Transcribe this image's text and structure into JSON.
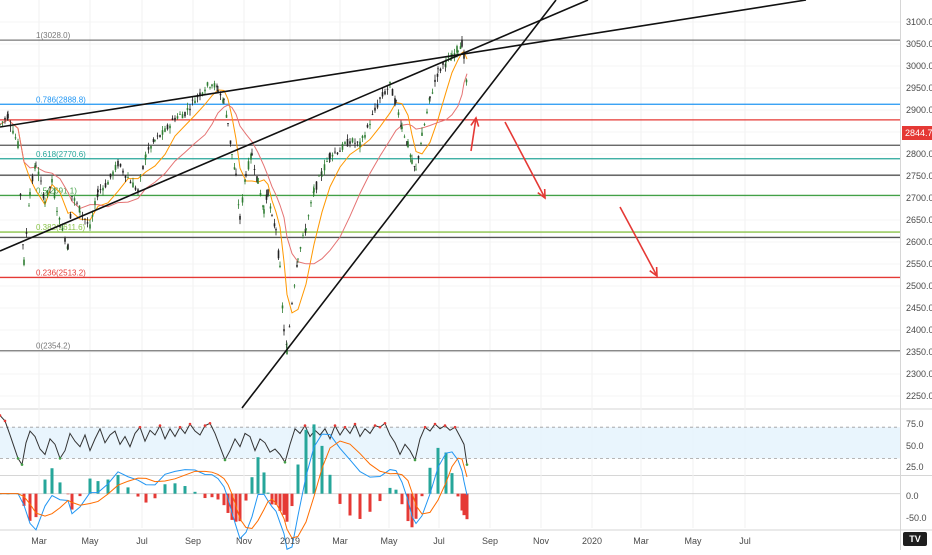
{
  "chart_data": {
    "type": "candlestick",
    "x_tick_labels": [
      "Mar",
      "May",
      "Jul",
      "Sep",
      "Nov",
      "2019",
      "Mar",
      "May",
      "Jul",
      "Sep",
      "Nov",
      "2020",
      "Mar",
      "May",
      "Jul"
    ],
    "y_tick_labels": [
      "3100.0",
      "3050.0",
      "3000.0",
      "2950.0",
      "2900.0",
      "2850.0",
      "2800.0",
      "2750.0",
      "2700.0",
      "2650.0",
      "2600.0",
      "2550.0",
      "2500.0",
      "2450.0",
      "2400.0",
      "2350.0",
      "2300.0",
      "2250.0"
    ],
    "ylim": [
      2230,
      3115
    ],
    "last_price": "2844.7",
    "last_price_color": "#e53935",
    "price_path": [
      [
        0,
        2845
      ],
      [
        8,
        2865
      ],
      [
        18,
        2800
      ],
      [
        24,
        2545
      ],
      [
        30,
        2700
      ],
      [
        36,
        2760
      ],
      [
        45,
        2680
      ],
      [
        52,
        2720
      ],
      [
        60,
        2630
      ],
      [
        68,
        2580
      ],
      [
        72,
        2690
      ],
      [
        80,
        2660
      ],
      [
        90,
        2620
      ],
      [
        98,
        2700
      ],
      [
        108,
        2720
      ],
      [
        118,
        2760
      ],
      [
        128,
        2730
      ],
      [
        138,
        2700
      ],
      [
        146,
        2780
      ],
      [
        155,
        2810
      ],
      [
        165,
        2830
      ],
      [
        175,
        2860
      ],
      [
        185,
        2870
      ],
      [
        195,
        2900
      ],
      [
        205,
        2925
      ],
      [
        212,
        2935
      ],
      [
        218,
        2920
      ],
      [
        224,
        2895
      ],
      [
        228,
        2850
      ],
      [
        232,
        2780
      ],
      [
        236,
        2730
      ],
      [
        240,
        2640
      ],
      [
        246,
        2740
      ],
      [
        252,
        2780
      ],
      [
        258,
        2720
      ],
      [
        264,
        2660
      ],
      [
        268,
        2700
      ],
      [
        272,
        2640
      ],
      [
        276,
        2620
      ],
      [
        280,
        2530
      ],
      [
        284,
        2400
      ],
      [
        287,
        2355
      ],
      [
        292,
        2460
      ],
      [
        298,
        2560
      ],
      [
        306,
        2620
      ],
      [
        314,
        2700
      ],
      [
        322,
        2740
      ],
      [
        330,
        2780
      ],
      [
        340,
        2790
      ],
      [
        350,
        2810
      ],
      [
        360,
        2800
      ],
      [
        370,
        2850
      ],
      [
        380,
        2900
      ],
      [
        390,
        2930
      ],
      [
        396,
        2890
      ],
      [
        402,
        2840
      ],
      [
        408,
        2800
      ],
      [
        412,
        2760
      ],
      [
        416,
        2745
      ],
      [
        422,
        2820
      ],
      [
        430,
        2900
      ],
      [
        438,
        2960
      ],
      [
        446,
        2980
      ],
      [
        452,
        2990
      ],
      [
        458,
        3010
      ],
      [
        462,
        3022
      ],
      [
        464,
        2990
      ],
      [
        467,
        2925
      ]
    ],
    "fib_levels": [
      {
        "label": "1(3028.0)",
        "value": 3028.0,
        "color": "#787878"
      },
      {
        "label": "0.786(2888.8)",
        "value": 2888.8,
        "color": "#2196f3"
      },
      {
        "label": "",
        "value": 2855,
        "color": "#e53935"
      },
      {
        "label": "",
        "value": 2800,
        "color": "#555555"
      },
      {
        "label": "0.618(2770.6)",
        "value": 2770.6,
        "color": "#26a69a"
      },
      {
        "label": "",
        "value": 2735,
        "color": "#555555"
      },
      {
        "label": "0.5(2691.1)",
        "value": 2691.1,
        "color": "#43a047"
      },
      {
        "label": "0.382(2611.6)",
        "value": 2611.6,
        "color": "#8bc34a"
      },
      {
        "label": "",
        "value": 2600,
        "color": "#555555"
      },
      {
        "label": "0.236(2513.2)",
        "value": 2513.2,
        "color": "#e53935"
      },
      {
        "label": "0(2354.2)",
        "value": 2354.2,
        "color": "#787878"
      }
    ],
    "rsi": {
      "tick_labels": [
        "75.0",
        "50.0",
        "25.0"
      ],
      "ylim": [
        10,
        92
      ],
      "upper_band": 70,
      "lower_band": 30,
      "series": [
        [
          0,
          85
        ],
        [
          5,
          78
        ],
        [
          10,
          60
        ],
        [
          14,
          45
        ],
        [
          18,
          30
        ],
        [
          22,
          22
        ],
        [
          26,
          50
        ],
        [
          30,
          65
        ],
        [
          35,
          58
        ],
        [
          40,
          42
        ],
        [
          45,
          35
        ],
        [
          50,
          55
        ],
        [
          55,
          48
        ],
        [
          60,
          30
        ],
        [
          65,
          40
        ],
        [
          70,
          62
        ],
        [
          75,
          52
        ],
        [
          80,
          45
        ],
        [
          85,
          60
        ],
        [
          90,
          40
        ],
        [
          95,
          55
        ],
        [
          100,
          68
        ],
        [
          105,
          50
        ],
        [
          110,
          60
        ],
        [
          115,
          65
        ],
        [
          120,
          48
        ],
        [
          125,
          58
        ],
        [
          130,
          45
        ],
        [
          135,
          62
        ],
        [
          140,
          70
        ],
        [
          145,
          52
        ],
        [
          150,
          66
        ],
        [
          155,
          60
        ],
        [
          160,
          72
        ],
        [
          165,
          55
        ],
        [
          170,
          68
        ],
        [
          175,
          58
        ],
        [
          180,
          70
        ],
        [
          185,
          62
        ],
        [
          190,
          74
        ],
        [
          195,
          65
        ],
        [
          200,
          60
        ],
        [
          205,
          72
        ],
        [
          210,
          75
        ],
        [
          215,
          62
        ],
        [
          220,
          45
        ],
        [
          225,
          28
        ],
        [
          230,
          40
        ],
        [
          235,
          55
        ],
        [
          240,
          45
        ],
        [
          245,
          62
        ],
        [
          250,
          58
        ],
        [
          255,
          40
        ],
        [
          260,
          55
        ],
        [
          265,
          50
        ],
        [
          270,
          38
        ],
        [
          275,
          42
        ],
        [
          280,
          35
        ],
        [
          285,
          25
        ],
        [
          290,
          48
        ],
        [
          295,
          68
        ],
        [
          300,
          62
        ],
        [
          305,
          72
        ],
        [
          310,
          58
        ],
        [
          315,
          66
        ],
        [
          320,
          60
        ],
        [
          325,
          68
        ],
        [
          330,
          55
        ],
        [
          335,
          72
        ],
        [
          340,
          60
        ],
        [
          345,
          70
        ],
        [
          350,
          62
        ],
        [
          355,
          74
        ],
        [
          360,
          58
        ],
        [
          365,
          68
        ],
        [
          370,
          62
        ],
        [
          375,
          72
        ],
        [
          380,
          70
        ],
        [
          385,
          75
        ],
        [
          390,
          60
        ],
        [
          395,
          50
        ],
        [
          400,
          35
        ],
        [
          405,
          48
        ],
        [
          410,
          40
        ],
        [
          415,
          28
        ],
        [
          420,
          55
        ],
        [
          425,
          70
        ],
        [
          430,
          65
        ],
        [
          435,
          74
        ],
        [
          440,
          68
        ],
        [
          445,
          72
        ],
        [
          450,
          66
        ],
        [
          455,
          70
        ],
        [
          460,
          58
        ],
        [
          464,
          48
        ],
        [
          467,
          22
        ]
      ]
    },
    "macd": {
      "tick_labels": [
        "0.0",
        "-50.0"
      ],
      "ylim": [
        -72,
        35
      ]
    }
  }
}
